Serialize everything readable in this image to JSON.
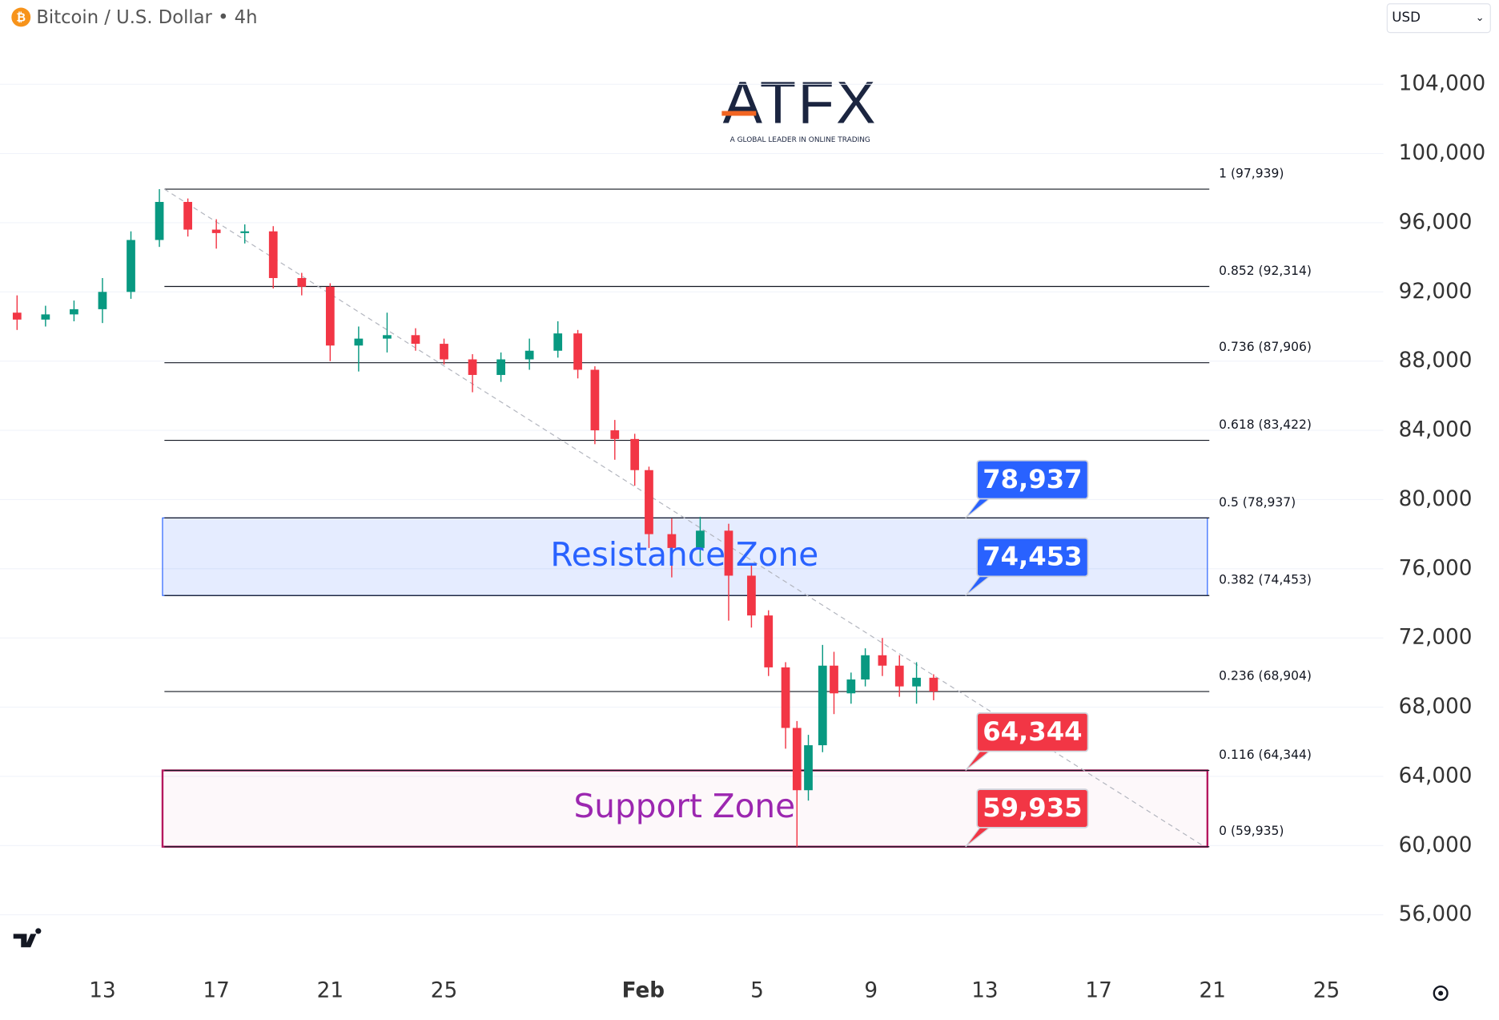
{
  "header": {
    "title": "Bitcoin / U.S. Dollar • 4h",
    "currency": "USD"
  },
  "logo": {
    "name": "ATFX",
    "tagline": "A GLOBAL LEADER IN ONLINE TRADING"
  },
  "chart_data": {
    "type": "candlestick",
    "up_color": "#089981",
    "down_color": "#f23645",
    "x": [
      9,
      10,
      11,
      12,
      13,
      14,
      15,
      16,
      17,
      18,
      19,
      20,
      21,
      22,
      23,
      24,
      25,
      26,
      27,
      28,
      28.7,
      29.3,
      30,
      30.7,
      31.2,
      32,
      33,
      34,
      34.8,
      35.4,
      36,
      36.4,
      36.8,
      37.3,
      37.7,
      38.3,
      38.8,
      39.4,
      40,
      40.6,
      41.2
    ],
    "open": [
      90800,
      90400,
      90700,
      91000,
      92000,
      95000,
      97200,
      95600,
      95400,
      95500,
      92800,
      92300,
      88900,
      89300,
      89500,
      89000,
      88100,
      87200,
      88100,
      88600,
      89600,
      87500,
      84000,
      83500,
      81700,
      78000,
      77200,
      78200,
      75600,
      73300,
      70300,
      66800,
      63200,
      65800,
      70400,
      68800,
      69600,
      71000,
      70400,
      69200,
      69700
    ],
    "high": [
      91800,
      91200,
      91500,
      92800,
      95500,
      97939,
      97400,
      96200,
      95900,
      95800,
      93100,
      92500,
      90000,
      90800,
      89900,
      89300,
      88400,
      88500,
      89300,
      90300,
      89800,
      87700,
      84600,
      83800,
      81900,
      78900,
      79000,
      78600,
      76200,
      73600,
      70600,
      67200,
      66400,
      71600,
      71200,
      70000,
      71400,
      72000,
      71000,
      70600,
      69900
    ],
    "low": [
      89800,
      90000,
      90300,
      90200,
      91600,
      94600,
      95200,
      94500,
      94800,
      92200,
      91800,
      88000,
      87400,
      88500,
      88600,
      87800,
      86200,
      86800,
      87500,
      88200,
      87000,
      83200,
      82300,
      80800,
      77200,
      75500,
      76400,
      73000,
      72600,
      69800,
      65600,
      59935,
      62600,
      65400,
      67600,
      68200,
      69200,
      69800,
      68600,
      68200,
      68400
    ],
    "close": [
      90400,
      90700,
      91000,
      92000,
      95000,
      97200,
      95600,
      95400,
      95500,
      92800,
      92300,
      88900,
      89300,
      89500,
      89000,
      88100,
      87200,
      88100,
      88600,
      89600,
      87500,
      84000,
      83500,
      81700,
      78000,
      77200,
      78200,
      75600,
      73300,
      70300,
      66800,
      63200,
      65800,
      70400,
      68800,
      69600,
      71000,
      70400,
      69200,
      69700,
      68904
    ],
    "xlim": [
      8.4,
      57
    ],
    "xticks": [
      {
        "value": 12,
        "label": "13"
      },
      {
        "value": 16,
        "label": "17"
      },
      {
        "value": 20,
        "label": "21"
      },
      {
        "value": 24,
        "label": "25"
      },
      {
        "value": 31,
        "label": "Feb"
      },
      {
        "value": 35,
        "label": "5"
      },
      {
        "value": 39,
        "label": "9"
      },
      {
        "value": 43,
        "label": "13"
      },
      {
        "value": 47,
        "label": "17"
      },
      {
        "value": 51,
        "label": "21"
      },
      {
        "value": 55,
        "label": "25"
      }
    ],
    "ylim": [
      53570,
      108870
    ],
    "yticks": [
      {
        "value": 56000,
        "label": "56,000"
      },
      {
        "value": 60000,
        "label": "60,000"
      },
      {
        "value": 64000,
        "label": "64,000"
      },
      {
        "value": 68000,
        "label": "68,000"
      },
      {
        "value": 72000,
        "label": "72,000"
      },
      {
        "value": 76000,
        "label": "76,000"
      },
      {
        "value": 80000,
        "label": "80,000"
      },
      {
        "value": 84000,
        "label": "84,000"
      },
      {
        "value": 88000,
        "label": "88,000"
      },
      {
        "value": 92000,
        "label": "92,000"
      },
      {
        "value": 96000,
        "label": "96,000"
      },
      {
        "value": 100000,
        "label": "100,000"
      },
      {
        "value": 104000,
        "label": "104,000"
      }
    ],
    "grid": true,
    "fib_levels": [
      {
        "value": 97939,
        "label": "1 (97,939)"
      },
      {
        "value": 92314,
        "label": "0.852 (92,314)"
      },
      {
        "value": 87906,
        "label": "0.736 (87,906)"
      },
      {
        "value": 83422,
        "label": "0.618 (83,422)"
      },
      {
        "value": 78937,
        "label": "0.5 (78,937)"
      },
      {
        "value": 74453,
        "label": "0.382 (74,453)"
      },
      {
        "value": 68904,
        "label": "0.236 (68,904)"
      },
      {
        "value": 64344,
        "label": "0.116 (64,344)"
      },
      {
        "value": 59935,
        "label": "0 (59,935)"
      }
    ],
    "zones": [
      {
        "name": "Resistance Zone",
        "low": 74453,
        "high": 78937,
        "color": "#2962ff",
        "text_color": "#2962ff"
      },
      {
        "name": "Support Zone",
        "low": 59935,
        "high": 64344,
        "color": "#b5175e",
        "text_color": "#9c27b0"
      }
    ],
    "callouts": {
      "values": [
        78937,
        74453,
        64344,
        59935
      ],
      "value_labels": [
        "78,937",
        "74,453",
        "64,344",
        "59,935"
      ],
      "colors": [
        "#2962ff",
        "#2962ff",
        "#f23645",
        "#f23645"
      ]
    }
  }
}
